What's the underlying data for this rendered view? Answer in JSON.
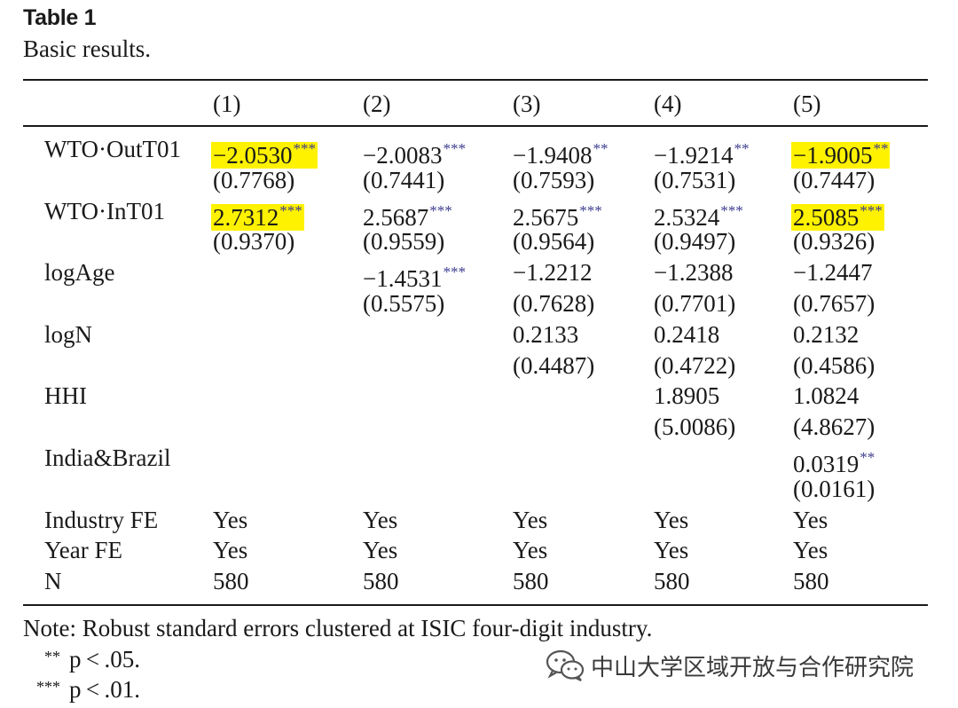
{
  "table": {
    "title": "Table 1",
    "subtitle": "Basic results.",
    "columns": [
      "(1)",
      "(2)",
      "(3)",
      "(4)",
      "(5)"
    ],
    "rows": [
      {
        "label": "WTO·OutT01",
        "coef": [
          {
            "v": "−2.0530",
            "s": "***",
            "hl": true
          },
          {
            "v": "−2.0083",
            "s": "***",
            "hl": false
          },
          {
            "v": "−1.9408",
            "s": "**",
            "hl": false
          },
          {
            "v": "−1.9214",
            "s": "**",
            "hl": false
          },
          {
            "v": "−1.9005",
            "s": "**",
            "hl": true
          }
        ],
        "se": [
          "(0.7768)",
          "(0.7441)",
          "(0.7593)",
          "(0.7531)",
          "(0.7447)"
        ]
      },
      {
        "label": "WTO·InT01",
        "coef": [
          {
            "v": "2.7312",
            "s": "***",
            "hl": true
          },
          {
            "v": "2.5687",
            "s": "***",
            "hl": false
          },
          {
            "v": "2.5675",
            "s": "***",
            "hl": false
          },
          {
            "v": "2.5324",
            "s": "***",
            "hl": false
          },
          {
            "v": "2.5085",
            "s": "***",
            "hl": true
          }
        ],
        "se": [
          "(0.9370)",
          "(0.9559)",
          "(0.9564)",
          "(0.9497)",
          "(0.9326)"
        ]
      },
      {
        "label": "logAge",
        "coef": [
          null,
          {
            "v": "−1.4531",
            "s": "***",
            "hl": false
          },
          {
            "v": "−1.2212",
            "s": "",
            "hl": false
          },
          {
            "v": "−1.2388",
            "s": "",
            "hl": false
          },
          {
            "v": "−1.2447",
            "s": "",
            "hl": false
          }
        ],
        "se": [
          null,
          "(0.5575)",
          "(0.7628)",
          "(0.7701)",
          "(0.7657)"
        ]
      },
      {
        "label": "logN",
        "coef": [
          null,
          null,
          {
            "v": "0.2133",
            "s": "",
            "hl": false
          },
          {
            "v": "0.2418",
            "s": "",
            "hl": false
          },
          {
            "v": "0.2132",
            "s": "",
            "hl": false
          }
        ],
        "se": [
          null,
          null,
          "(0.4487)",
          "(0.4722)",
          "(0.4586)"
        ]
      },
      {
        "label": "HHI",
        "coef": [
          null,
          null,
          null,
          {
            "v": "1.8905",
            "s": "",
            "hl": false
          },
          {
            "v": "1.0824",
            "s": "",
            "hl": false
          }
        ],
        "se": [
          null,
          null,
          null,
          "(5.0086)",
          "(4.8627)"
        ]
      },
      {
        "label": "India&Brazil",
        "coef": [
          null,
          null,
          null,
          null,
          {
            "v": "0.0319",
            "s": "**",
            "hl": false
          }
        ],
        "se": [
          null,
          null,
          null,
          null,
          "(0.0161)"
        ]
      }
    ],
    "footer_rows": [
      {
        "label": "Industry FE",
        "values": [
          "Yes",
          "Yes",
          "Yes",
          "Yes",
          "Yes"
        ]
      },
      {
        "label": "Year FE",
        "values": [
          "Yes",
          "Yes",
          "Yes",
          "Yes",
          "Yes"
        ]
      },
      {
        "label": "N",
        "values": [
          "580",
          "580",
          "580",
          "580",
          "580"
        ]
      }
    ],
    "note": "Note: Robust standard errors clustered at ISIC four-digit industry.",
    "significance": [
      {
        "mark": "**",
        "text": "p < .05."
      },
      {
        "mark": "***",
        "text": "p < .01."
      }
    ]
  },
  "watermark": {
    "text": "中山大学区域开放与合作研究院",
    "icon": "wechat-icon"
  },
  "colors": {
    "highlight": "#fff200",
    "stars": "#3b3b8f"
  }
}
